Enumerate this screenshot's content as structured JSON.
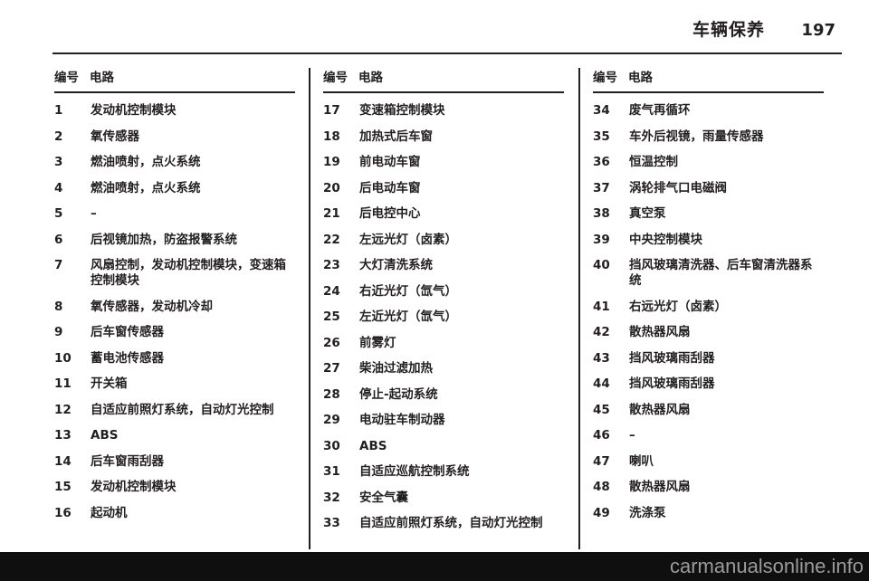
{
  "header": {
    "title": "车辆保养",
    "page_number": "197"
  },
  "table": {
    "header": {
      "number": "编号",
      "circuit": "电路"
    },
    "columns": [
      {
        "rows": [
          {
            "num": "1",
            "circuit": "发动机控制模块"
          },
          {
            "num": "2",
            "circuit": "氧传感器"
          },
          {
            "num": "3",
            "circuit": "燃油喷射，点火系统"
          },
          {
            "num": "4",
            "circuit": "燃油喷射，点火系统"
          },
          {
            "num": "5",
            "circuit": "–"
          },
          {
            "num": "6",
            "circuit": "后视镜加热，防盗报警系统"
          },
          {
            "num": "7",
            "circuit": "风扇控制，发动机控制模块，变速箱控制模块"
          },
          {
            "num": "8",
            "circuit": "氧传感器，发动机冷却"
          },
          {
            "num": "9",
            "circuit": "后车窗传感器"
          },
          {
            "num": "10",
            "circuit": "蓄电池传感器"
          },
          {
            "num": "11",
            "circuit": "开关箱"
          },
          {
            "num": "12",
            "circuit": "自适应前照灯系统，自动灯光控制"
          },
          {
            "num": "13",
            "circuit": "ABS"
          },
          {
            "num": "14",
            "circuit": "后车窗雨刮器"
          },
          {
            "num": "15",
            "circuit": "发动机控制模块"
          },
          {
            "num": "16",
            "circuit": "起动机"
          }
        ]
      },
      {
        "rows": [
          {
            "num": "17",
            "circuit": "变速箱控制模块"
          },
          {
            "num": "18",
            "circuit": "加热式后车窗"
          },
          {
            "num": "19",
            "circuit": "前电动车窗"
          },
          {
            "num": "20",
            "circuit": "后电动车窗"
          },
          {
            "num": "21",
            "circuit": "后电控中心"
          },
          {
            "num": "22",
            "circuit": "左远光灯（卤素）"
          },
          {
            "num": "23",
            "circuit": "大灯清洗系统"
          },
          {
            "num": "24",
            "circuit": "右近光灯（氙气）"
          },
          {
            "num": "25",
            "circuit": "左近光灯（氙气）"
          },
          {
            "num": "26",
            "circuit": "前雾灯"
          },
          {
            "num": "27",
            "circuit": "柴油过滤加热"
          },
          {
            "num": "28",
            "circuit": "停止-起动系统"
          },
          {
            "num": "29",
            "circuit": "电动驻车制动器"
          },
          {
            "num": "30",
            "circuit": "ABS"
          },
          {
            "num": "31",
            "circuit": "自适应巡航控制系统"
          },
          {
            "num": "32",
            "circuit": "安全气囊"
          },
          {
            "num": "33",
            "circuit": "自适应前照灯系统，自动灯光控制"
          }
        ]
      },
      {
        "rows": [
          {
            "num": "34",
            "circuit": "废气再循环"
          },
          {
            "num": "35",
            "circuit": "车外后视镜，雨量传感器"
          },
          {
            "num": "36",
            "circuit": "恒温控制"
          },
          {
            "num": "37",
            "circuit": "涡轮排气口电磁阀"
          },
          {
            "num": "38",
            "circuit": "真空泵"
          },
          {
            "num": "39",
            "circuit": "中央控制模块"
          },
          {
            "num": "40",
            "circuit": "挡风玻璃清洗器、后车窗清洗器系统"
          },
          {
            "num": "41",
            "circuit": "右远光灯（卤素）"
          },
          {
            "num": "42",
            "circuit": "散热器风扇"
          },
          {
            "num": "43",
            "circuit": "挡风玻璃雨刮器"
          },
          {
            "num": "44",
            "circuit": "挡风玻璃雨刮器"
          },
          {
            "num": "45",
            "circuit": "散热器风扇"
          },
          {
            "num": "46",
            "circuit": "–"
          },
          {
            "num": "47",
            "circuit": "喇叭"
          },
          {
            "num": "48",
            "circuit": "散热器风扇"
          },
          {
            "num": "49",
            "circuit": "洗涤泵"
          }
        ]
      }
    ]
  },
  "watermark": "carmanualsonline.info",
  "colors": {
    "text": "#231f20",
    "bottom_bar": "#0f0f0f",
    "watermark_text": "#9b9b9b",
    "page_background": "#ffffff"
  }
}
